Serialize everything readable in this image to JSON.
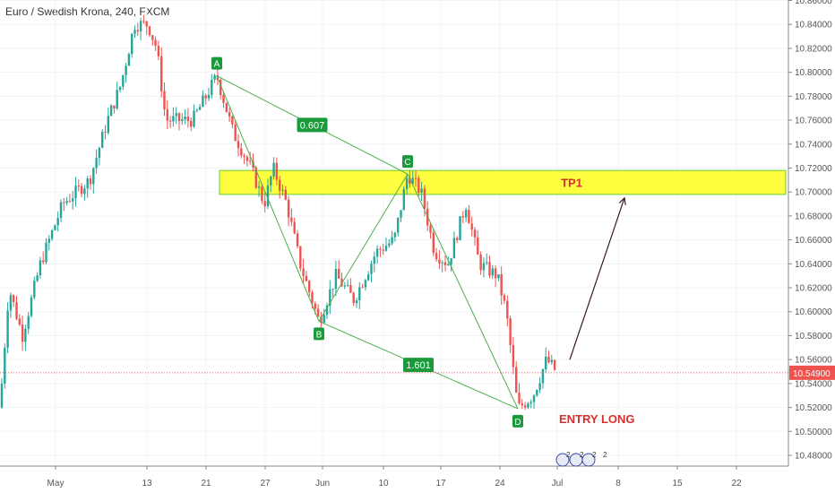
{
  "chart_data": {
    "type": "candlestick",
    "title": "Euro / Swedish Krona, 240, FXCM",
    "ylim": [
      10.48,
      10.87
    ],
    "y_ticks": [
      "10.86000",
      "10.84000",
      "10.82000",
      "10.80000",
      "10.78000",
      "10.76000",
      "10.74000",
      "10.72000",
      "10.70000",
      "10.68000",
      "10.66000",
      "10.64000",
      "10.62000",
      "10.60000",
      "10.58000",
      "10.56000",
      "10.54000",
      "10.52000",
      "10.50000",
      "10.48000"
    ],
    "x_ticks": [
      "May",
      "13",
      "21",
      "27",
      "Jun",
      "10",
      "17",
      "24",
      "Jul",
      "8",
      "15",
      "22"
    ],
    "current_price": "10.54900",
    "tp_zone": {
      "label": "TP1",
      "low": 10.698,
      "high": 10.718
    },
    "pattern": {
      "points": [
        {
          "label": "A",
          "x": "May 21",
          "y": 10.797
        },
        {
          "label": "B",
          "x": "Jun 3",
          "y": 10.592
        },
        {
          "label": "C",
          "x": "Jun 13",
          "y": 10.715
        },
        {
          "label": "D",
          "x": "Jun 26",
          "y": 10.519
        }
      ],
      "ratios": [
        {
          "label": "0.607",
          "between": "A-C"
        },
        {
          "label": "1.601",
          "between": "B-D"
        }
      ]
    },
    "annotation": "ENTRY LONG",
    "events_badge": "2",
    "projection": {
      "from": 10.56,
      "to": 10.695
    }
  }
}
